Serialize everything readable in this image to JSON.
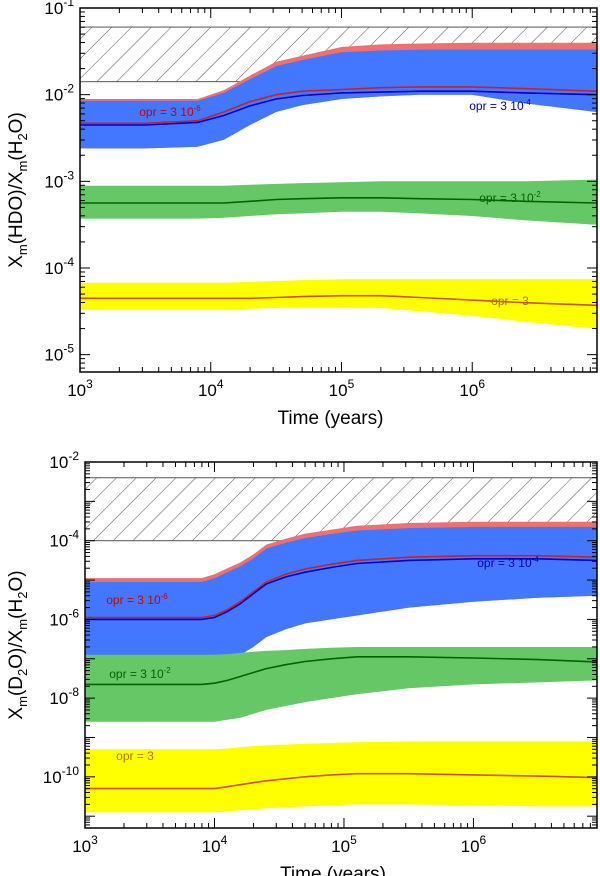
{
  "colors": {
    "red_band": "#f07070",
    "blue_band": "#4477ff",
    "green_band": "#66c766",
    "yellow_band": "#ffff00",
    "red_line": "#cc2020",
    "blue_line": "#0000cc",
    "green_line": "#006400",
    "yellow_line": "#c85028",
    "label_red": "#cc0000",
    "label_blue": "#0000aa",
    "label_green": "#006400",
    "label_yellow": "#b07010"
  },
  "chart_data": [
    {
      "type": "area",
      "id": "top",
      "xlabel": "Time (years)",
      "ylabel_html": [
        "X",
        "m",
        "(HDO)/X",
        "m",
        "(H",
        "2",
        "O)"
      ],
      "xscale": "log",
      "yscale": "log",
      "xlim": [
        1000,
        9000000
      ],
      "ylim_exp": [
        -5.2,
        -1
      ],
      "x_ticks": [
        {
          "exp": "3"
        },
        {
          "exp": "4"
        },
        {
          "exp": "5"
        },
        {
          "exp": "6"
        }
      ],
      "y_ticks": [
        {
          "exp": "-5"
        },
        {
          "exp": "-4"
        },
        {
          "exp": "-3"
        },
        {
          "exp": "-2"
        },
        {
          "exp": "-1"
        }
      ],
      "tick_base": "10",
      "observed_range_exp": [
        -1.85,
        -1.22
      ],
      "x_log": [
        3,
        3.5,
        3.9,
        4.1,
        4.3,
        4.5,
        4.7,
        5,
        5.3,
        5.6,
        6,
        6.4,
        6.95
      ],
      "series": [
        {
          "name": "opr = 3 10-6",
          "label_text": "opr = 3 10",
          "label_sup": "-6",
          "color_key": "red",
          "lo": [
            -2.62,
            -2.62,
            -2.6,
            -2.52,
            -2.35,
            -2.2,
            -2.12,
            -2.05,
            -2.02,
            -2,
            -2,
            -2.1,
            -2.2
          ],
          "hi": [
            -2.05,
            -2.05,
            -2.05,
            -1.95,
            -1.78,
            -1.62,
            -1.55,
            -1.45,
            -1.42,
            -1.41,
            -1.4,
            -1.4,
            -1.4
          ],
          "mid": [
            -2.33,
            -2.33,
            -2.3,
            -2.2,
            -2.08,
            -2,
            -1.96,
            -1.94,
            -1.92,
            -1.91,
            -1.91,
            -1.93,
            -1.96
          ]
        },
        {
          "name": "opr = 3 10-4",
          "label_text": "opr = 3 10",
          "label_sup": "-4",
          "color_key": "blue",
          "lo": [
            -2.62,
            -2.62,
            -2.6,
            -2.52,
            -2.35,
            -2.2,
            -2.12,
            -2.05,
            -2.02,
            -2,
            -2,
            -2.1,
            -2.2
          ],
          "hi": [
            -2.07,
            -2.07,
            -2.07,
            -1.98,
            -1.82,
            -1.67,
            -1.6,
            -1.51,
            -1.49,
            -1.48,
            -1.48,
            -1.48,
            -1.48
          ],
          "mid": [
            -2.35,
            -2.35,
            -2.32,
            -2.24,
            -2.13,
            -2.05,
            -2.01,
            -1.98,
            -1.97,
            -1.96,
            -1.96,
            -1.98,
            -2
          ]
        },
        {
          "name": "opr = 3 10-2",
          "label_text": "opr = 3 10",
          "label_sup": "-2",
          "color_key": "green",
          "lo": [
            -3.43,
            -3.43,
            -3.43,
            -3.42,
            -3.4,
            -3.38,
            -3.37,
            -3.35,
            -3.35,
            -3.37,
            -3.4,
            -3.45,
            -3.5
          ],
          "hi": [
            -3.05,
            -3.05,
            -3.05,
            -3.05,
            -3.04,
            -3.03,
            -3.02,
            -3.01,
            -3,
            -3,
            -3,
            -3,
            -2.98
          ],
          "mid": [
            -3.25,
            -3.25,
            -3.25,
            -3.25,
            -3.23,
            -3.21,
            -3.2,
            -3.19,
            -3.19,
            -3.2,
            -3.21,
            -3.23,
            -3.25
          ]
        },
        {
          "name": "opr = 3",
          "label_text": "opr = 3",
          "label_sup": "",
          "color_key": "yellow",
          "lo": [
            -4.48,
            -4.48,
            -4.48,
            -4.48,
            -4.47,
            -4.46,
            -4.45,
            -4.45,
            -4.46,
            -4.5,
            -4.55,
            -4.62,
            -4.7
          ],
          "hi": [
            -4.17,
            -4.17,
            -4.17,
            -4.17,
            -4.16,
            -4.15,
            -4.14,
            -4.13,
            -4.13,
            -4.13,
            -4.13,
            -4.13,
            -4.13
          ],
          "mid": [
            -4.35,
            -4.35,
            -4.35,
            -4.35,
            -4.35,
            -4.34,
            -4.33,
            -4.32,
            -4.32,
            -4.34,
            -4.37,
            -4.4,
            -4.43
          ]
        }
      ]
    },
    {
      "type": "area",
      "id": "bottom",
      "xlabel": "Time (years)",
      "ylabel_html": [
        "X",
        "m",
        "(D",
        "2",
        "O)/X",
        "m",
        "(H",
        "2",
        "O)"
      ],
      "xscale": "log",
      "yscale": "log",
      "xlim": [
        1000,
        9000000
      ],
      "ylim_exp": [
        -11.3,
        -2
      ],
      "x_ticks": [
        {
          "exp": "3"
        },
        {
          "exp": "4"
        },
        {
          "exp": "5"
        },
        {
          "exp": "6"
        }
      ],
      "y_ticks": [
        {
          "exp": "-10"
        },
        {
          "exp": "-8"
        },
        {
          "exp": "-6"
        },
        {
          "exp": "-4"
        },
        {
          "exp": "-2"
        }
      ],
      "tick_base": "10",
      "observed_range_exp": [
        -4,
        -2.4
      ],
      "x_log": [
        3,
        3.5,
        3.9,
        4,
        4.1,
        4.2,
        4.3,
        4.4,
        4.55,
        4.7,
        4.9,
        5.1,
        5.5,
        6,
        6.5,
        6.95
      ],
      "series": [
        {
          "name": "opr = 3 10-6",
          "label_text": "opr = 3 10",
          "label_sup": "-6",
          "color_key": "red",
          "lo": [
            -7.2,
            -7.2,
            -7.2,
            -7.15,
            -7.05,
            -6.9,
            -6.7,
            -6.45,
            -6.25,
            -6.1,
            -6,
            -5.9,
            -5.7,
            -5.55,
            -5.45,
            -5.4
          ],
          "hi": [
            -4.95,
            -4.95,
            -4.95,
            -4.85,
            -4.7,
            -4.55,
            -4.35,
            -4.1,
            -3.95,
            -3.82,
            -3.72,
            -3.62,
            -3.55,
            -3.52,
            -3.52,
            -3.52
          ],
          "mid": [
            -5.95,
            -5.95,
            -5.95,
            -5.9,
            -5.75,
            -5.55,
            -5.3,
            -5.05,
            -4.85,
            -4.72,
            -4.6,
            -4.5,
            -4.42,
            -4.38,
            -4.38,
            -4.42
          ]
        },
        {
          "name": "opr = 3 10-4",
          "label_text": "opr = 3 10",
          "label_sup": "-4",
          "color_key": "blue",
          "lo": [
            -7.2,
            -7.2,
            -7.2,
            -7.15,
            -7.05,
            -6.9,
            -6.7,
            -6.45,
            -6.25,
            -6.1,
            -6,
            -5.9,
            -5.7,
            -5.55,
            -5.45,
            -5.4
          ],
          "hi": [
            -5.05,
            -5.05,
            -5.05,
            -4.95,
            -4.8,
            -4.65,
            -4.45,
            -4.2,
            -4.05,
            -3.93,
            -3.83,
            -3.74,
            -3.68,
            -3.65,
            -3.65,
            -3.65
          ],
          "mid": [
            -6,
            -6,
            -6,
            -5.95,
            -5.8,
            -5.6,
            -5.35,
            -5.1,
            -4.92,
            -4.8,
            -4.68,
            -4.58,
            -4.5,
            -4.46,
            -4.46,
            -4.5
          ]
        },
        {
          "name": "opr = 3 10-2",
          "label_text": "opr = 3 10",
          "label_sup": "-2",
          "color_key": "green",
          "lo": [
            -8.6,
            -8.6,
            -8.6,
            -8.6,
            -8.55,
            -8.5,
            -8.4,
            -8.3,
            -8.2,
            -8.1,
            -8,
            -7.9,
            -7.75,
            -7.65,
            -7.6,
            -7.55
          ],
          "hi": [
            -6.9,
            -6.9,
            -6.9,
            -6.9,
            -6.88,
            -6.85,
            -6.82,
            -6.8,
            -6.78,
            -6.75,
            -6.72,
            -6.7,
            -6.7,
            -6.7,
            -6.7,
            -6.7
          ],
          "mid": [
            -7.65,
            -7.65,
            -7.65,
            -7.62,
            -7.55,
            -7.45,
            -7.35,
            -7.25,
            -7.15,
            -7.07,
            -7,
            -6.95,
            -6.95,
            -6.98,
            -7.02,
            -7.08
          ]
        },
        {
          "name": "opr = 3",
          "label_text": "opr = 3",
          "label_sup": "",
          "color_key": "yellow",
          "lo": [
            -10.9,
            -10.9,
            -10.9,
            -10.9,
            -10.88,
            -10.85,
            -10.82,
            -10.8,
            -10.78,
            -10.75,
            -10.72,
            -10.7,
            -10.7,
            -10.72,
            -10.75,
            -10.75
          ],
          "hi": [
            -9.3,
            -9.3,
            -9.3,
            -9.3,
            -9.28,
            -9.25,
            -9.22,
            -9.2,
            -9.18,
            -9.16,
            -9.14,
            -9.12,
            -9.1,
            -9.1,
            -9.1,
            -9.1
          ],
          "mid": [
            -10.3,
            -10.3,
            -10.3,
            -10.3,
            -10.25,
            -10.2,
            -10.15,
            -10.1,
            -10.05,
            -10,
            -9.95,
            -9.92,
            -9.92,
            -9.95,
            -9.98,
            -10.02
          ]
        }
      ]
    }
  ]
}
